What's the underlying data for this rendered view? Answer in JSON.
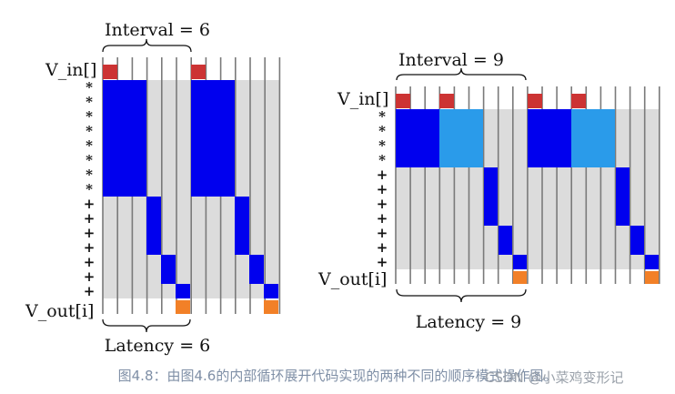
{
  "caption": "图4.8：由图4.6的内部循环展开代码实现的两种不同的顺序模式操作图。",
  "watermark": "CSDN @小菜鸡变形记",
  "colors": {
    "input_red": "#cc3333",
    "blue": "#0000ee",
    "light_blue": "#2a9bea",
    "output_orange": "#f28027",
    "band_gray": "#dcdcdc",
    "line_gray": "#7a7a7a"
  },
  "diagrams": [
    {
      "interval_label": "Interval = 6",
      "latency_label": "Latency = 6",
      "vin_label": "V_in[]",
      "vout_label": "V_out[i]",
      "mult_symbol": "*",
      "add_symbol": "+",
      "mult_rows": 8,
      "add_rows": 7,
      "cycles": 12,
      "interval": 6,
      "latency": 6
    },
    {
      "interval_label": "Interval = 9",
      "latency_label": "Latency = 9",
      "vin_label": "V_in[]",
      "vout_label": "V_out[i]",
      "mult_symbol": "*",
      "add_symbol": "+",
      "mult_rows": 4,
      "add_rows": 7,
      "cycles": 18,
      "interval": 9,
      "latency": 9
    }
  ]
}
